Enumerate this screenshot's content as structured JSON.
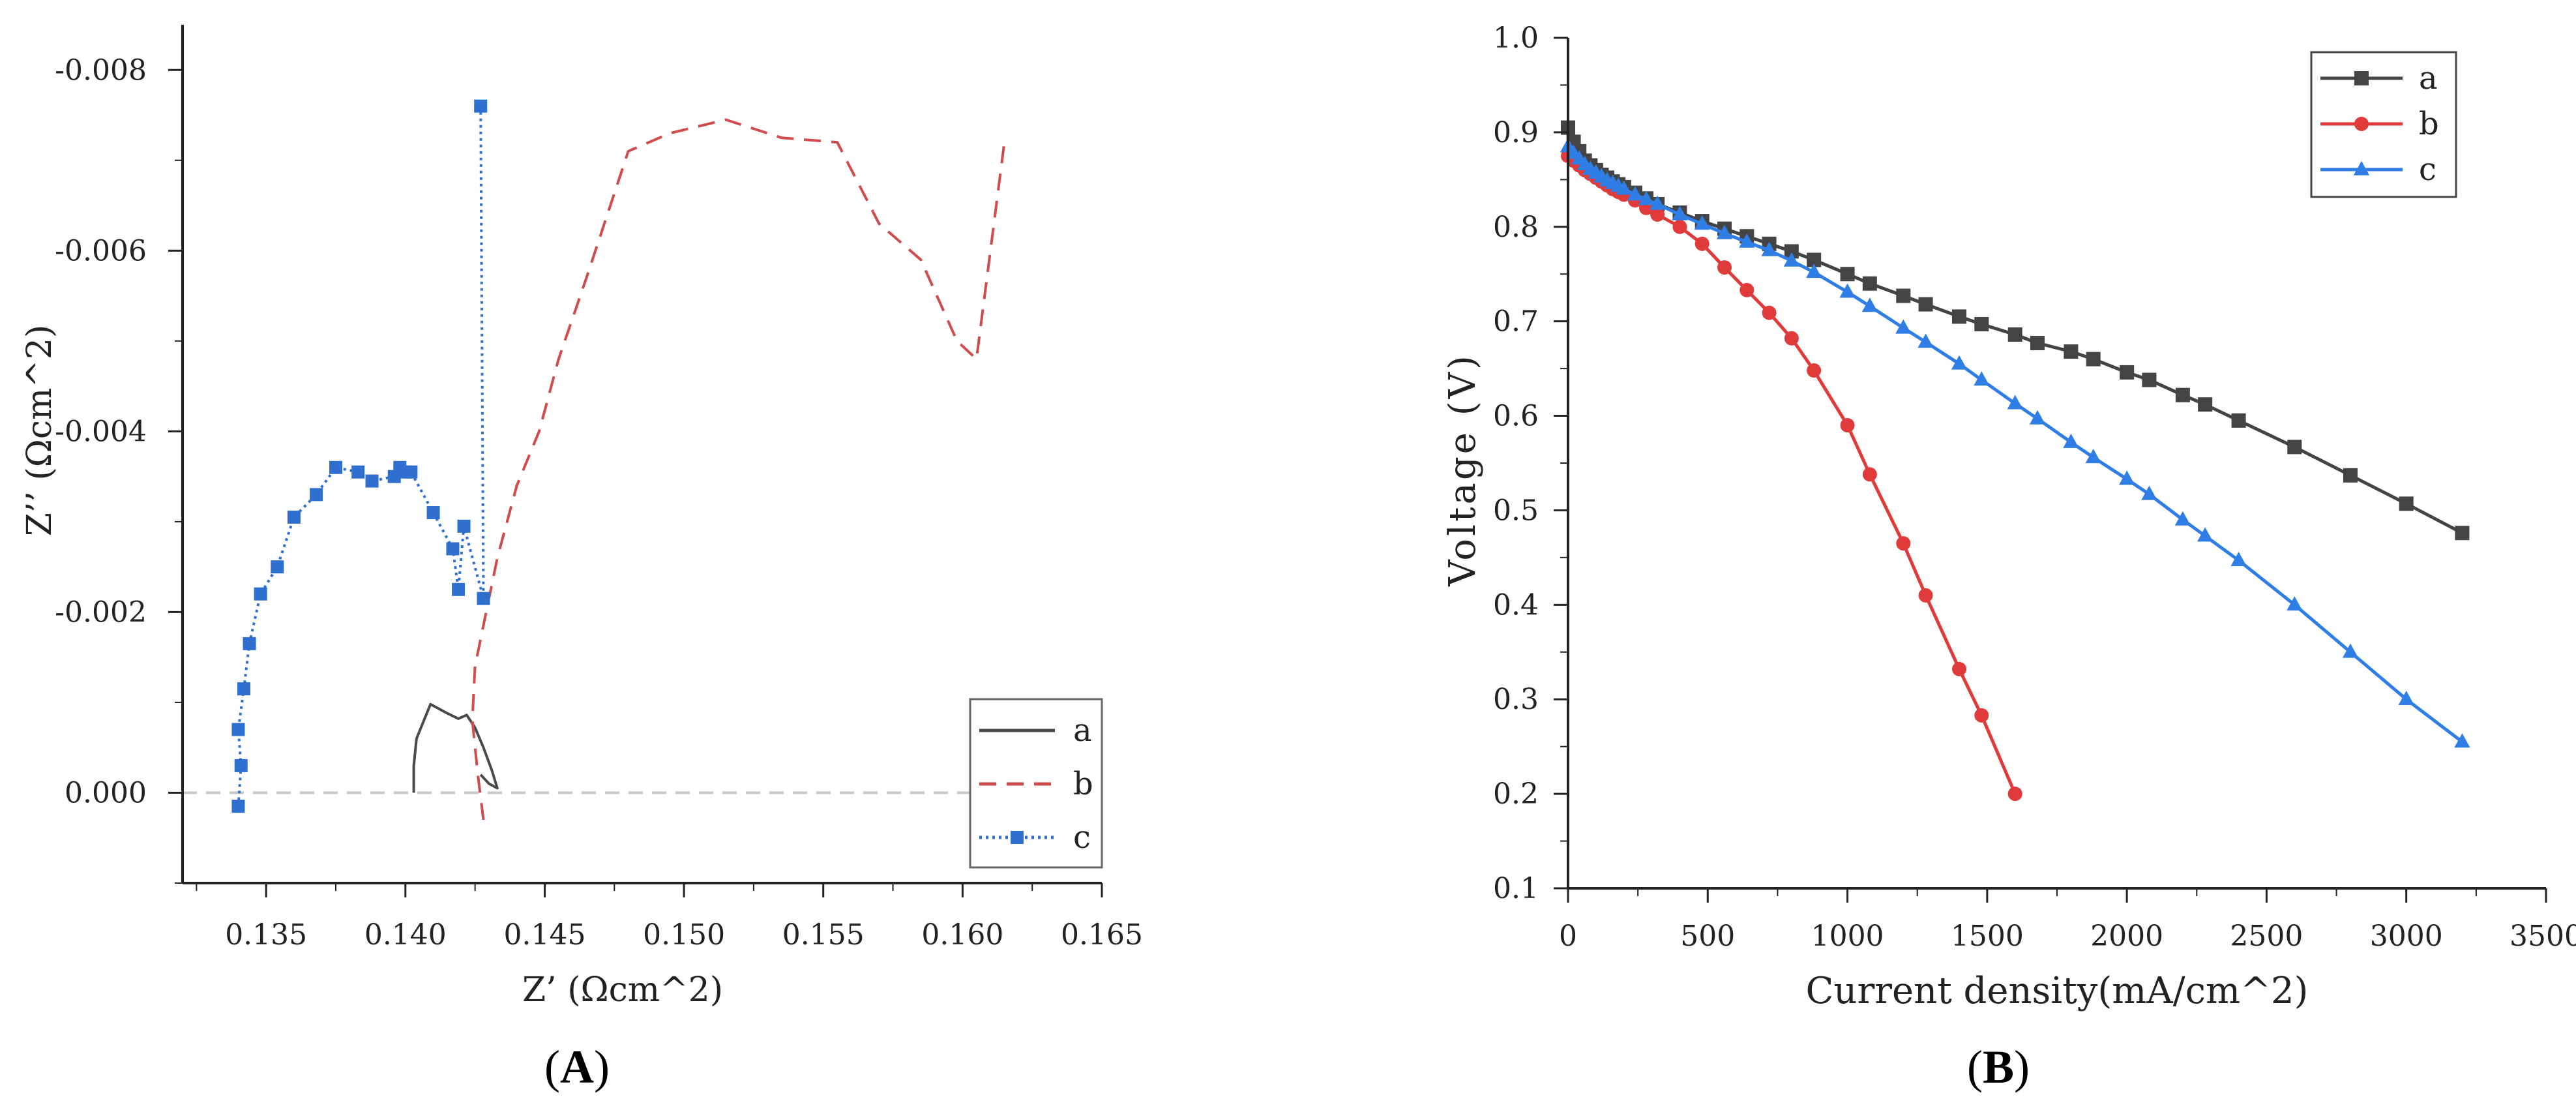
{
  "chart_data": [
    {
      "type": "scatter",
      "panel_label": "A",
      "title": "",
      "xlabel": "Z’ (Ωcm^2)",
      "ylabel": "Z’’ (Ωcm^2)",
      "xlim": [
        0.132,
        0.165
      ],
      "ylim": [
        0.001,
        -0.0085
      ],
      "y_inverted": true,
      "xticks": [
        0.135,
        0.14,
        0.145,
        0.15,
        0.155,
        0.16,
        0.165
      ],
      "xtick_labels": [
        "0.135",
        "0.140",
        "0.145",
        "0.150",
        "0.155",
        "0.160",
        "0.165"
      ],
      "yticks": [
        0.0,
        -0.002,
        -0.004,
        -0.006,
        -0.008
      ],
      "ytick_labels": [
        "0.000",
        "-0.002",
        "-0.004",
        "-0.006",
        "-0.008"
      ],
      "zero_reference_line": true,
      "legend_position": "bottom-right",
      "series": [
        {
          "name": "a",
          "color": "#4a4a4a",
          "style": "solid",
          "marker": "none",
          "x": [
            0.1403,
            0.1403,
            0.1404,
            0.1409,
            0.1415,
            0.1419,
            0.1422,
            0.1425,
            0.1428,
            0.1431,
            0.1433,
            0.143,
            0.1427
          ],
          "y": [
            0.0,
            -0.0003,
            -0.0006,
            -0.00098,
            -0.00088,
            -0.00082,
            -0.00086,
            -0.00072,
            -0.0005,
            -0.00025,
            -5e-05,
            -0.0001,
            -0.0002
          ]
        },
        {
          "name": "b",
          "color": "#d04b4b",
          "style": "dashed",
          "marker": "none",
          "x": [
            0.1428,
            0.1426,
            0.1424,
            0.1425,
            0.1429,
            0.1433,
            0.144,
            0.1448,
            0.1455,
            0.1465,
            0.148,
            0.1495,
            0.1515,
            0.1535,
            0.1555,
            0.157,
            0.1585,
            0.1598,
            0.1605,
            0.1615
          ],
          "y": [
            0.0003,
            -0.0002,
            -0.0008,
            -0.0014,
            -0.002,
            -0.0026,
            -0.0034,
            -0.004,
            -0.0048,
            -0.0057,
            -0.0071,
            -0.0073,
            -0.00745,
            -0.00725,
            -0.0072,
            -0.0063,
            -0.0059,
            -0.005,
            -0.0048,
            -0.0072
          ]
        },
        {
          "name": "c",
          "color": "#2f6fd0",
          "style": "dotted",
          "marker": "square",
          "x": [
            0.134,
            0.1341,
            0.134,
            0.1342,
            0.1344,
            0.1348,
            0.1354,
            0.136,
            0.1368,
            0.1375,
            0.1383,
            0.1388,
            0.1396,
            0.1398,
            0.14,
            0.1402,
            0.141,
            0.1417,
            0.1419,
            0.1421,
            0.1428,
            0.1427
          ],
          "y": [
            0.00015,
            -0.0003,
            -0.0007,
            -0.00115,
            -0.00165,
            -0.0022,
            -0.0025,
            -0.00305,
            -0.0033,
            -0.0036,
            -0.00355,
            -0.00345,
            -0.0035,
            -0.0036,
            -0.00355,
            -0.00355,
            -0.0031,
            -0.0027,
            -0.00225,
            -0.00295,
            -0.00215,
            -0.0076
          ]
        }
      ]
    },
    {
      "type": "line",
      "panel_label": "B",
      "title": "",
      "xlabel": "Current density(mA/cm^2)",
      "ylabel": "Voltage (V)",
      "xlim": [
        0,
        3500
      ],
      "ylim": [
        0.1,
        1.0
      ],
      "xticks": [
        0,
        500,
        1000,
        1500,
        2000,
        2500,
        3000,
        3500
      ],
      "xtick_labels": [
        "0",
        "500",
        "1000",
        "1500",
        "2000",
        "2500",
        "3000",
        "3500"
      ],
      "yticks": [
        0.1,
        0.2,
        0.3,
        0.4,
        0.5,
        0.6,
        0.7,
        0.8,
        0.9,
        1.0
      ],
      "ytick_labels": [
        "0.1",
        "0.2",
        "0.3",
        "0.4",
        "0.5",
        "0.6",
        "0.7",
        "0.8",
        "0.9",
        "1.0"
      ],
      "legend_position": "top-right",
      "series": [
        {
          "name": "a",
          "color": "#444444",
          "marker": "square",
          "x": [
            0,
            20,
            40,
            60,
            80,
            100,
            120,
            140,
            160,
            180,
            200,
            240,
            280,
            320,
            400,
            480,
            560,
            640,
            720,
            800,
            880,
            1000,
            1080,
            1200,
            1280,
            1400,
            1480,
            1600,
            1680,
            1800,
            1880,
            2000,
            2080,
            2200,
            2280,
            2400,
            2600,
            2800,
            3000,
            3200
          ],
          "values": [
            0.905,
            0.89,
            0.88,
            0.87,
            0.865,
            0.86,
            0.855,
            0.852,
            0.848,
            0.845,
            0.842,
            0.836,
            0.83,
            0.824,
            0.815,
            0.806,
            0.798,
            0.79,
            0.782,
            0.774,
            0.765,
            0.75,
            0.74,
            0.727,
            0.718,
            0.705,
            0.697,
            0.686,
            0.677,
            0.668,
            0.66,
            0.646,
            0.638,
            0.622,
            0.612,
            0.595,
            0.567,
            0.537,
            0.507,
            0.476
          ]
        },
        {
          "name": "b",
          "color": "#e03a3a",
          "marker": "circle",
          "x": [
            0,
            20,
            40,
            60,
            80,
            100,
            120,
            140,
            160,
            180,
            200,
            240,
            280,
            320,
            400,
            480,
            560,
            640,
            720,
            800,
            880,
            1000,
            1080,
            1200,
            1280,
            1400,
            1480,
            1600
          ],
          "values": [
            0.875,
            0.87,
            0.865,
            0.86,
            0.856,
            0.852,
            0.848,
            0.844,
            0.84,
            0.837,
            0.834,
            0.828,
            0.82,
            0.813,
            0.8,
            0.782,
            0.757,
            0.733,
            0.709,
            0.682,
            0.648,
            0.59,
            0.538,
            0.465,
            0.41,
            0.332,
            0.283,
            0.2
          ]
        },
        {
          "name": "c",
          "color": "#2e7ee6",
          "marker": "triangle",
          "x": [
            0,
            20,
            40,
            60,
            80,
            100,
            120,
            140,
            160,
            180,
            200,
            240,
            280,
            320,
            400,
            480,
            560,
            640,
            720,
            800,
            880,
            1000,
            1080,
            1200,
            1280,
            1400,
            1480,
            1600,
            1680,
            1800,
            1880,
            2000,
            2080,
            2200,
            2280,
            2400,
            2600,
            2800,
            3000,
            3200
          ],
          "values": [
            0.885,
            0.878,
            0.872,
            0.866,
            0.861,
            0.857,
            0.853,
            0.849,
            0.846,
            0.843,
            0.84,
            0.834,
            0.829,
            0.824,
            0.813,
            0.803,
            0.793,
            0.784,
            0.775,
            0.764,
            0.752,
            0.731,
            0.716,
            0.693,
            0.678,
            0.655,
            0.638,
            0.613,
            0.597,
            0.572,
            0.556,
            0.533,
            0.517,
            0.49,
            0.473,
            0.447,
            0.4,
            0.35,
            0.3,
            0.255
          ]
        }
      ]
    }
  ]
}
